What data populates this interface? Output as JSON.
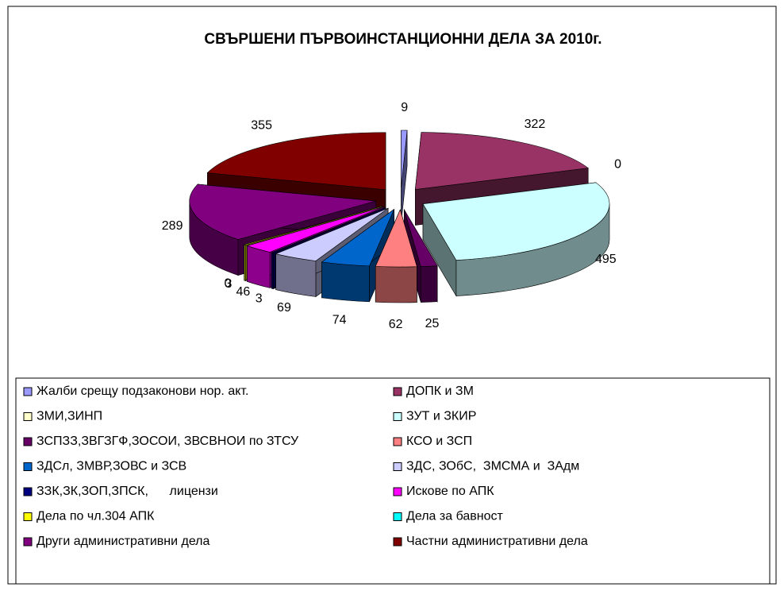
{
  "chart_data": {
    "type": "pie3d",
    "title": "СВЪРШЕНИ ПЪРВОИНСТАНЦИОННИ ДЕЛА ЗА 2010г.",
    "categories": [
      "Жалби срещу подзаконови нор. акт.",
      "ДОПК и ЗМ",
      "ЗМИ,ЗИНП",
      "ЗУТ и ЗКИР",
      "ЗСПЗЗ,ЗВГЗГФ,ЗОСОИ, ЗВСВНОИ по ЗТСУ",
      "КСО и ЗСП",
      "ЗДСл, ЗМВР,ЗОВС и ЗСВ",
      "ЗДС, ЗОбС,  ЗМСМА и  ЗАдм",
      "ЗЗК,ЗК,ЗОП,ЗПСК,      лицензи",
      "Искове по АПК",
      "Дела по чл.304 АПК",
      "Дела за бавност",
      "Други административни дела",
      "Частни административни дела"
    ],
    "values": [
      9,
      322,
      0,
      495,
      25,
      62,
      74,
      69,
      3,
      46,
      3,
      0,
      289,
      355
    ],
    "colors": [
      "#9999ff",
      "#993366",
      "#ffffcc",
      "#ccffff",
      "#660066",
      "#ff8080",
      "#0066cc",
      "#ccccff",
      "#000080",
      "#ff00ff",
      "#ffff00",
      "#00ffff",
      "#800080",
      "#800000"
    ],
    "legend": "bottom"
  }
}
